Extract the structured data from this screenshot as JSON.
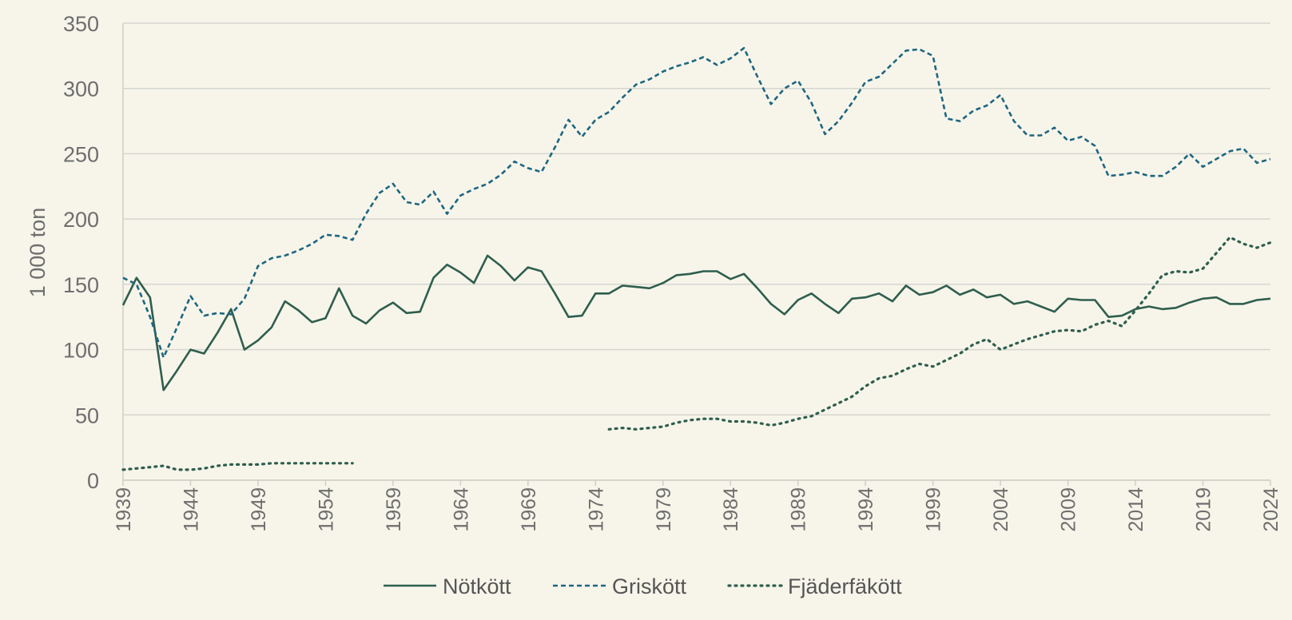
{
  "chart_data": {
    "type": "line",
    "ylabel": "1 000 ton",
    "ylim": [
      0,
      350
    ],
    "xlim": [
      1939,
      2024
    ],
    "y_ticks": [
      "0",
      "50",
      "100",
      "150",
      "200",
      "250",
      "300",
      "350"
    ],
    "x_ticks": [
      "1939",
      "1944",
      "1949",
      "1954",
      "1959",
      "1964",
      "1969",
      "1974",
      "1979",
      "1984",
      "1989",
      "1994",
      "1999",
      "2004",
      "2009",
      "2014",
      "2019",
      "2024"
    ],
    "grid": true,
    "legend_position": "bottom",
    "series": [
      {
        "name": "Nötkött",
        "color": "#2f5e4e",
        "dash": "solid",
        "x": [
          1939,
          1940,
          1941,
          1942,
          1943,
          1944,
          1945,
          1946,
          1947,
          1948,
          1949,
          1950,
          1951,
          1952,
          1953,
          1954,
          1955,
          1956,
          1957,
          1958,
          1959,
          1960,
          1961,
          1962,
          1963,
          1964,
          1965,
          1966,
          1967,
          1968,
          1969,
          1970,
          1971,
          1972,
          1973,
          1974,
          1975,
          1976,
          1977,
          1978,
          1979,
          1980,
          1981,
          1982,
          1983,
          1984,
          1985,
          1986,
          1987,
          1988,
          1989,
          1990,
          1991,
          1992,
          1993,
          1994,
          1995,
          1996,
          1997,
          1998,
          1999,
          2000,
          2001,
          2002,
          2003,
          2004,
          2005,
          2006,
          2007,
          2008,
          2009,
          2010,
          2011,
          2012,
          2013,
          2014,
          2015,
          2016,
          2017,
          2018,
          2019,
          2020,
          2021,
          2022,
          2023,
          2024
        ],
        "values": [
          134,
          155,
          140,
          69,
          84,
          100,
          97,
          113,
          131,
          100,
          107,
          117,
          137,
          130,
          121,
          124,
          147,
          126,
          120,
          130,
          136,
          128,
          129,
          155,
          165,
          159,
          151,
          172,
          164,
          153,
          163,
          160,
          143,
          125,
          126,
          143,
          143,
          149,
          148,
          147,
          151,
          157,
          158,
          160,
          160,
          154,
          158,
          147,
          135,
          127,
          138,
          143,
          135,
          128,
          139,
          140,
          143,
          137,
          149,
          142,
          144,
          149,
          142,
          146,
          140,
          142,
          135,
          137,
          133,
          129,
          139,
          138,
          138,
          125,
          126,
          131,
          133,
          131,
          132,
          136,
          139,
          140,
          135,
          135,
          138,
          139
        ]
      },
      {
        "name": "Griskött",
        "color": "#1e6680",
        "dash": "dashed",
        "x": [
          1939,
          1940,
          1941,
          1942,
          1943,
          1944,
          1945,
          1946,
          1947,
          1948,
          1949,
          1950,
          1951,
          1952,
          1953,
          1954,
          1955,
          1956,
          1957,
          1958,
          1959,
          1960,
          1961,
          1962,
          1963,
          1964,
          1965,
          1966,
          1967,
          1968,
          1969,
          1970,
          1971,
          1972,
          1973,
          1974,
          1975,
          1976,
          1977,
          1978,
          1979,
          1980,
          1981,
          1982,
          1983,
          1984,
          1985,
          1986,
          1987,
          1988,
          1989,
          1990,
          1991,
          1992,
          1993,
          1994,
          1995,
          1996,
          1997,
          1998,
          1999,
          2000,
          2001,
          2002,
          2003,
          2004,
          2005,
          2006,
          2007,
          2008,
          2009,
          2010,
          2011,
          2012,
          2013,
          2014,
          2015,
          2016,
          2017,
          2018,
          2019,
          2020,
          2021,
          2022,
          2023,
          2024
        ],
        "values": [
          155,
          150,
          125,
          94,
          117,
          141,
          126,
          128,
          127,
          139,
          164,
          170,
          172,
          176,
          181,
          188,
          187,
          184,
          204,
          220,
          227,
          213,
          211,
          221,
          204,
          218,
          223,
          227,
          234,
          244,
          239,
          236,
          255,
          276,
          263,
          276,
          282,
          293,
          303,
          307,
          313,
          317,
          320,
          324,
          318,
          323,
          331,
          309,
          288,
          300,
          306,
          289,
          265,
          275,
          289,
          305,
          309,
          319,
          329,
          330,
          325,
          277,
          275,
          283,
          287,
          295,
          275,
          264,
          264,
          270,
          260,
          263,
          256,
          233,
          234,
          236,
          233,
          233,
          240,
          250,
          240,
          246,
          252,
          254,
          243,
          246
        ]
      },
      {
        "name": "Fjäderfäkött",
        "color": "#2f5e4e",
        "dash": "dotted",
        "x": [
          1939,
          1940,
          1941,
          1942,
          1943,
          1944,
          1945,
          1946,
          1947,
          1948,
          1949,
          1950,
          1951,
          1952,
          1953,
          1954,
          1955,
          1956,
          1975,
          1976,
          1977,
          1978,
          1979,
          1980,
          1981,
          1982,
          1983,
          1984,
          1985,
          1986,
          1987,
          1988,
          1989,
          1990,
          1991,
          1992,
          1993,
          1994,
          1995,
          1996,
          1997,
          1998,
          1999,
          2000,
          2001,
          2002,
          2003,
          2004,
          2005,
          2006,
          2007,
          2008,
          2009,
          2010,
          2011,
          2012,
          2013,
          2014,
          2015,
          2016,
          2017,
          2018,
          2019,
          2020,
          2021,
          2022,
          2023,
          2024
        ],
        "values": [
          8,
          9,
          10,
          11,
          8,
          8,
          9,
          11,
          12,
          12,
          12,
          13,
          13,
          13,
          13,
          13,
          13,
          13,
          39,
          40,
          39,
          40,
          41,
          44,
          46,
          47,
          47,
          45,
          45,
          44,
          42,
          44,
          47,
          49,
          54,
          59,
          64,
          72,
          78,
          80,
          85,
          89,
          87,
          92,
          97,
          104,
          108,
          100,
          104,
          108,
          111,
          114,
          115,
          114,
          119,
          122,
          118,
          130,
          143,
          157,
          160,
          159,
          162,
          174,
          186,
          181,
          178,
          182
        ]
      }
    ]
  }
}
